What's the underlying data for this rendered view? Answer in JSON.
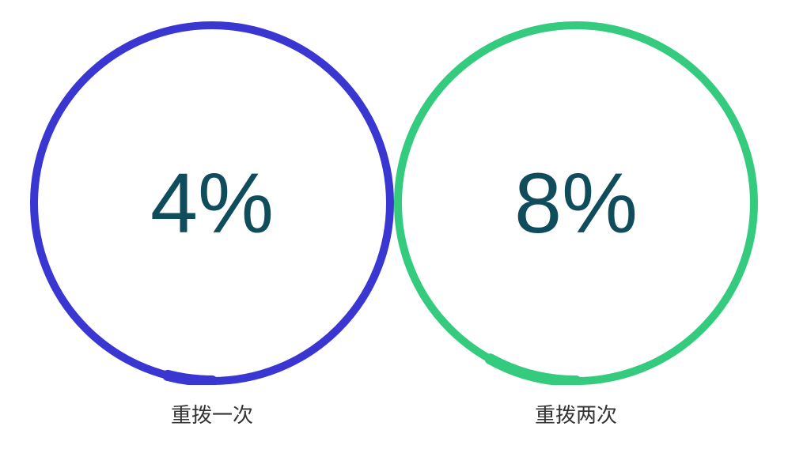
{
  "chart": {
    "type": "donut-pair",
    "background_color": "#ffffff",
    "donut_diameter": 460,
    "ring_thickness": 10,
    "center_value_fontsize": 108,
    "center_value_color": "#0f4c5c",
    "caption_fontsize": 26,
    "caption_color": "#333333",
    "items": [
      {
        "value_text": "4%",
        "caption": "重拨一次",
        "percent_filled": 4,
        "ring_color": "#3a36d1",
        "track_color": "#3a36d1"
      },
      {
        "value_text": "8%",
        "caption": "重拨两次",
        "percent_filled": 8,
        "ring_color": "#34cb7f",
        "track_color": "#34cb7f"
      }
    ]
  }
}
